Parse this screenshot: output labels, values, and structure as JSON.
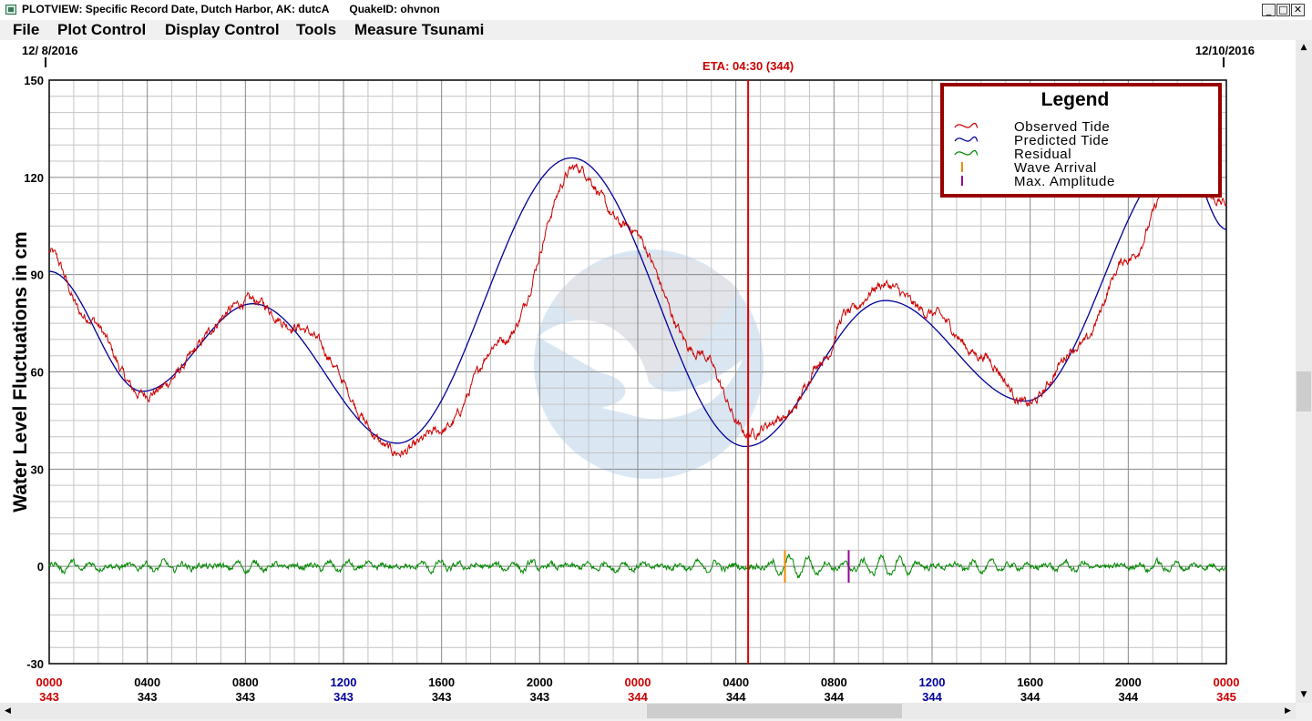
{
  "window": {
    "title": "PLOTVIEW: Specific Record Date, Dutch Harbor, AK: dutcA",
    "quake_id": "QuakeID: ohvnon",
    "controls": {
      "minimize": "_",
      "maximize": "□",
      "close": "✕"
    }
  },
  "menu": [
    "File",
    "Plot Control",
    "Display Control",
    "Tools",
    "Measure Tsunami"
  ],
  "plot": {
    "start_date": "12/ 8/2016",
    "end_date": "12/10/2016",
    "eta_label": "ETA: 04:30 (344)",
    "ylabel": "Water Level Fluctuations in cm",
    "watermark_icon": "noaa-logo-icon",
    "colors": {
      "observed": "#cc0000",
      "predicted": "#000099",
      "residual": "#008800",
      "wave_arrival": "#ee8800",
      "max_amplitude": "#990099",
      "eta_line": "#dd0000",
      "legend_border": "#990000"
    }
  },
  "legend": {
    "title": "Legend",
    "items": [
      {
        "label": "Observed Tide",
        "color": "#cc0000",
        "symbol": "wave"
      },
      {
        "label": "Predicted Tide",
        "color": "#000099",
        "symbol": "wave"
      },
      {
        "label": "Residual",
        "color": "#008800",
        "symbol": "wave"
      },
      {
        "label": "Wave Arrival",
        "color": "#ee8800",
        "symbol": "bar"
      },
      {
        "label": "Max. Amplitude",
        "color": "#990099",
        "symbol": "bar"
      }
    ]
  },
  "chart_data": {
    "type": "line",
    "ylim": [
      -30,
      150
    ],
    "xlim_hours": [
      0,
      48
    ],
    "y_ticks": [
      "150",
      "120",
      "90",
      "60",
      "30",
      "0",
      "-30"
    ],
    "x_ticks": [
      {
        "time": "0000",
        "day": "343",
        "time_color": "#cc0000",
        "day_color": "#cc0000"
      },
      {
        "time": "0400",
        "day": "343",
        "time_color": "#000000",
        "day_color": "#000000"
      },
      {
        "time": "0800",
        "day": "343",
        "time_color": "#000000",
        "day_color": "#000000"
      },
      {
        "time": "1200",
        "day": "343",
        "time_color": "#000099",
        "day_color": "#000099"
      },
      {
        "time": "1600",
        "day": "343",
        "time_color": "#000000",
        "day_color": "#000000"
      },
      {
        "time": "2000",
        "day": "343",
        "time_color": "#000000",
        "day_color": "#000000"
      },
      {
        "time": "0000",
        "day": "344",
        "time_color": "#cc0000",
        "day_color": "#cc0000"
      },
      {
        "time": "0400",
        "day": "344",
        "time_color": "#000000",
        "day_color": "#000000"
      },
      {
        "time": "0800",
        "day": "344",
        "time_color": "#000000",
        "day_color": "#000000"
      },
      {
        "time": "1200",
        "day": "344",
        "time_color": "#000099",
        "day_color": "#000099"
      },
      {
        "time": "1600",
        "day": "344",
        "time_color": "#000000",
        "day_color": "#000000"
      },
      {
        "time": "2000",
        "day": "344",
        "time_color": "#000000",
        "day_color": "#000000"
      },
      {
        "time": "0000",
        "day": "345",
        "time_color": "#cc0000",
        "day_color": "#cc0000"
      }
    ],
    "eta_hour": 28.5,
    "wave_arrival_hour": 30.0,
    "max_amplitude_hour": 32.6,
    "predicted": {
      "x": [
        0,
        3.8,
        8.3,
        14.2,
        21.3,
        28.4,
        34.1,
        39.8,
        46.2,
        48
      ],
      "y": [
        91,
        54,
        81,
        38,
        126,
        37,
        82,
        51,
        127,
        104
      ]
    },
    "observed": {
      "x": [
        0,
        1.5,
        3.8,
        8.3,
        10,
        14.3,
        16,
        18.5,
        21.5,
        23.5,
        26.5,
        28.5,
        30,
        31.6,
        32.5,
        34,
        36,
        38,
        39.9,
        42,
        44,
        46,
        48
      ],
      "y": [
        97,
        77,
        53,
        82,
        74,
        35,
        42,
        70,
        123,
        105,
        66,
        41,
        46,
        64,
        78,
        87,
        78,
        65,
        50,
        68,
        95,
        122,
        112
      ]
    },
    "residual": {
      "mean": 0,
      "amplitude_cm": 3
    }
  }
}
